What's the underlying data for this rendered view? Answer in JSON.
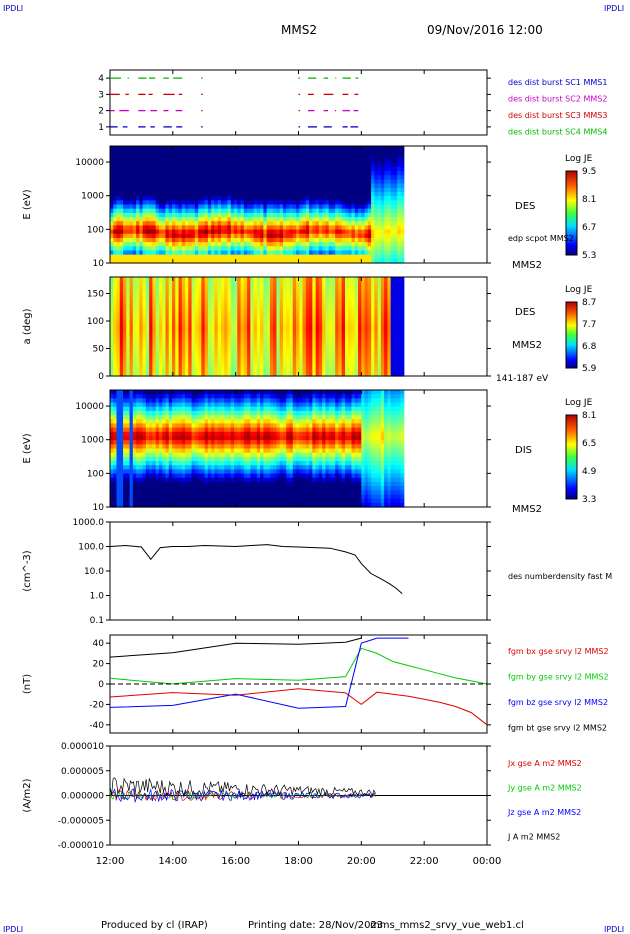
{
  "header": {
    "corner_label": "IPDLI",
    "spacecraft": "MMS2",
    "datetime": "09/Nov/2016 12:00"
  },
  "footer": {
    "produced_by": "Produced by cl (IRAP)",
    "printing_date": "Printing date: 28/Nov/2023",
    "script_name": "mms_mms2_srvy_vue_web1.cl"
  },
  "colors": {
    "fgm_bx": "#e00000",
    "fgm_by": "#00cc00",
    "fgm_bz": "#0000ff",
    "fgm_bt": "#000000",
    "burst_sc1": "#0000cc",
    "burst_sc2": "#cc00cc",
    "burst_sc3": "#cc0000",
    "burst_sc4": "#00bb00"
  },
  "chart_data": [
    {
      "type": "timeline",
      "panel": "burst",
      "ylim": [
        0.5,
        4.5
      ],
      "yticks": [
        "1",
        "2",
        "3",
        "4"
      ],
      "legend": [
        {
          "label": "des dist burst SC1 MMS1",
          "color": "#0000cc",
          "y": 1
        },
        {
          "label": "des dist burst SC2 MMS2",
          "color": "#cc00cc",
          "y": 2
        },
        {
          "label": "des dist burst SC3 MMS3",
          "color": "#cc0000",
          "y": 3
        },
        {
          "label": "des dist burst SC4 MMS4",
          "color": "#00bb00",
          "y": 4
        }
      ],
      "intervals_hours": [
        [
          12.0,
          12.6
        ],
        [
          12.9,
          13.5
        ],
        [
          13.7,
          14.3
        ],
        [
          14.9,
          14.95
        ],
        [
          18.0,
          18.05
        ],
        [
          18.3,
          18.6
        ],
        [
          18.8,
          19.2
        ],
        [
          19.4,
          19.9
        ]
      ]
    },
    {
      "type": "heatmap",
      "panel": "des-energy",
      "ylabel": "E (eV)",
      "yscale": "log",
      "ylim": [
        10,
        30000
      ],
      "yticks": [
        "10",
        "100",
        "1000",
        "10000"
      ],
      "instrument": "DES",
      "satellite": "MMS2",
      "overlay_label": "edp scpot MMS2",
      "colorbar": {
        "title": "Log JE",
        "ticks": [
          "9.5",
          "8.1",
          "6.7",
          "5.3"
        ],
        "min": 5.3,
        "max": 9.5
      }
    },
    {
      "type": "heatmap",
      "panel": "des-pitch",
      "ylabel": "a (deg)",
      "ylim": [
        0,
        180
      ],
      "yticks": [
        "0",
        "50",
        "100",
        "150"
      ],
      "instrument": "DES",
      "satellite": "MMS2",
      "energy_range": "141-187 eV",
      "colorbar": {
        "title": "Log JE",
        "ticks": [
          "8.7",
          "7.7",
          "6.8",
          "5.9"
        ],
        "min": 5.9,
        "max": 8.7
      }
    },
    {
      "type": "heatmap",
      "panel": "dis-energy",
      "ylabel": "E (eV)",
      "yscale": "log",
      "ylim": [
        10,
        30000
      ],
      "yticks": [
        "10",
        "100",
        "1000",
        "10000"
      ],
      "instrument": "DIS",
      "satellite": "MMS2",
      "colorbar": {
        "title": "Log JE",
        "ticks": [
          "8.1",
          "6.5",
          "4.9",
          "3.3"
        ],
        "min": 3.3,
        "max": 8.1
      }
    },
    {
      "type": "line",
      "panel": "density",
      "ylabel": "(cm^-3)",
      "yscale": "log",
      "ylim": [
        0.1,
        1000
      ],
      "yticks": [
        "0.1",
        "1.0",
        "10.0",
        "100.0",
        "1000.0"
      ],
      "series": [
        {
          "name": "des numberdensity fast M",
          "color": "#000000",
          "x": [
            12.0,
            12.5,
            13.0,
            13.3,
            13.6,
            14.0,
            14.5,
            15.0,
            15.5,
            16.0,
            16.5,
            17.0,
            17.5,
            18.0,
            18.5,
            19.0,
            19.5,
            19.8,
            20.0,
            20.3,
            20.6,
            20.9,
            21.1,
            21.3
          ],
          "values": [
            100,
            110,
            95,
            30,
            90,
            100,
            100,
            110,
            105,
            100,
            110,
            120,
            100,
            95,
            90,
            85,
            60,
            45,
            20,
            8,
            5,
            3,
            2,
            1.2
          ]
        }
      ]
    },
    {
      "type": "line",
      "panel": "fgm",
      "ylabel": "(nT)",
      "ylim": [
        -48,
        48
      ],
      "yticks": [
        "-40",
        "-20",
        "0",
        "20",
        "40"
      ],
      "series": [
        {
          "name": "fgm bx gse srvy l2 MMS2",
          "color": "#e00000",
          "x": [
            12.0,
            14.0,
            16.0,
            18.0,
            19.5,
            20.0,
            20.5,
            21.0,
            21.5,
            22.0,
            22.5,
            23.0,
            23.5,
            24.0
          ],
          "values": [
            -5,
            -5,
            -3,
            -3,
            -5,
            -20,
            -8,
            -10,
            -12,
            -15,
            -18,
            -22,
            -28,
            -40
          ]
        },
        {
          "name": "fgm by gse srvy l2 MMS2",
          "color": "#00cc00",
          "x": [
            12.0,
            14.0,
            16.0,
            18.0,
            19.5,
            20.0,
            20.5,
            21.0,
            21.5,
            22.0,
            22.5,
            23.0,
            23.5,
            24.0
          ],
          "values": [
            0,
            5,
            3,
            5,
            8,
            35,
            30,
            22,
            18,
            14,
            10,
            6,
            3,
            0
          ]
        },
        {
          "name": "fgm bz gse srvy l2 MMS2",
          "color": "#0000ff",
          "x": [
            12.0,
            14.0,
            16.0,
            18.0,
            19.5,
            20.0,
            20.5,
            21.0,
            21.5
          ],
          "values": [
            -15,
            -20,
            -15,
            -15,
            -20,
            40,
            45,
            45,
            45
          ]
        },
        {
          "name": "fgm bt gse srvy l2 MMS2",
          "color": "#000000",
          "x": [
            12.0,
            14.0,
            16.0,
            18.0,
            19.5,
            20.0
          ],
          "values": [
            30,
            40,
            40,
            40,
            40,
            45
          ]
        }
      ]
    },
    {
      "type": "line",
      "panel": "current",
      "ylabel": "(A/m2)",
      "ylim": [
        -1e-05,
        1e-05
      ],
      "yticks": [
        "-0.000010",
        "-0.000005",
        "0.000000",
        "0.000005",
        "0.000010"
      ],
      "series": [
        {
          "name": "Jx gse A m2 MMS2",
          "color": "#e00000"
        },
        {
          "name": "Jy gse A m2 MMS2",
          "color": "#00cc00"
        },
        {
          "name": "Jz gse A m2 MMS2",
          "color": "#0000ff"
        },
        {
          "name": "J A m2 MMS2",
          "color": "#000000"
        }
      ],
      "active_range_hours": [
        12.0,
        20.5
      ]
    }
  ],
  "time_axis": {
    "range_hours": [
      12,
      24
    ],
    "tick_labels": [
      "12:00",
      "14:00",
      "16:00",
      "18:00",
      "20:00",
      "22:00",
      "00:00"
    ]
  }
}
